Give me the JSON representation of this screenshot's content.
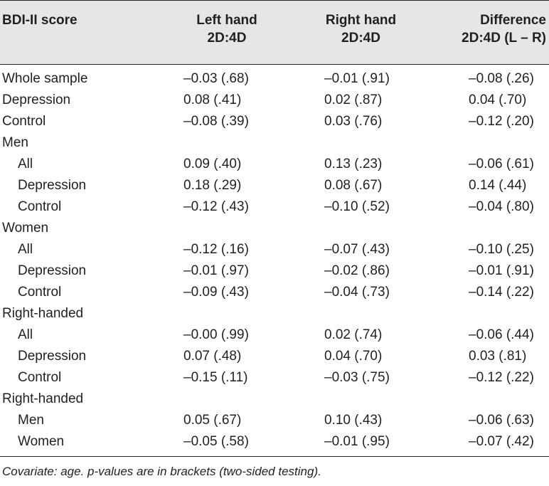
{
  "header": {
    "col0": "BDI-II score",
    "col1_line1": "Left hand",
    "col1_line2": "2D:4D",
    "col2_line1": "Right hand",
    "col2_line2": "2D:4D",
    "col3_line1": "Difference",
    "col3_line2": "2D:4D (L – R)"
  },
  "rows": [
    {
      "label": "Whole sample",
      "left": "–0.03 (.68)",
      "right": "–0.01 (.91)",
      "diff": "–0.08 (.26)"
    },
    {
      "label": "Depression",
      "left": "0.08 (.41)",
      "right": "0.02 (.87)",
      "diff": "0.04 (.70)"
    },
    {
      "label": "Control",
      "left": "–0.08 (.39)",
      "right": "0.03 (.76)",
      "diff": "–0.12 (.20)"
    },
    {
      "label": "Men",
      "left": "",
      "right": "",
      "diff": ""
    },
    {
      "label": "All",
      "left": "0.09 (.40)",
      "right": "0.13 (.23)",
      "diff": "–0.06 (.61)"
    },
    {
      "label": "Depression",
      "left": "0.18 (.29)",
      "right": "0.08 (.67)",
      "diff": "0.14 (.44)"
    },
    {
      "label": "Control",
      "left": "–0.12 (.43)",
      "right": "–0.10 (.52)",
      "diff": "–0.04 (.80)"
    },
    {
      "label": "Women",
      "left": "",
      "right": "",
      "diff": ""
    },
    {
      "label": "All",
      "left": "–0.12 (.16)",
      "right": "–0.07 (.43)",
      "diff": "–0.10 (.25)"
    },
    {
      "label": "Depression",
      "left": "–0.01 (.97)",
      "right": "–0.02 (.86)",
      "diff": "–0.01 (.91)"
    },
    {
      "label": "Control",
      "left": "–0.09 (.43)",
      "right": "–0.04 (.73)",
      "diff": "–0.14 (.22)"
    },
    {
      "label": "Right-handed",
      "left": "",
      "right": "",
      "diff": ""
    },
    {
      "label": "All",
      "left": "–0.00 (.99)",
      "right": "0.02 (.74)",
      "diff": "–0.06 (.44)"
    },
    {
      "label": "Depression",
      "left": "0.07 (.48)",
      "right": "0.04 (.70)",
      "diff": "0.03 (.81)"
    },
    {
      "label": "Control",
      "left": "–0.15 (.11)",
      "right": "–0.03 (.75)",
      "diff": "–0.12 (.22)"
    },
    {
      "label": "Right-handed",
      "left": "",
      "right": "",
      "diff": ""
    },
    {
      "label": "Men",
      "left": "0.05 (.67)",
      "right": "0.10 (.43)",
      "diff": "–0.06 (.63)"
    },
    {
      "label": "Women",
      "left": "–0.05 (.58)",
      "right": "–0.01 (.95)",
      "diff": "–0.07 (.42)"
    }
  ],
  "footnote": "Covariate: age. p-values are in brackets (two-sided testing).",
  "colors": {
    "header_background": "#e6e6e6",
    "text": "#231f20",
    "rule": "#231f20"
  }
}
